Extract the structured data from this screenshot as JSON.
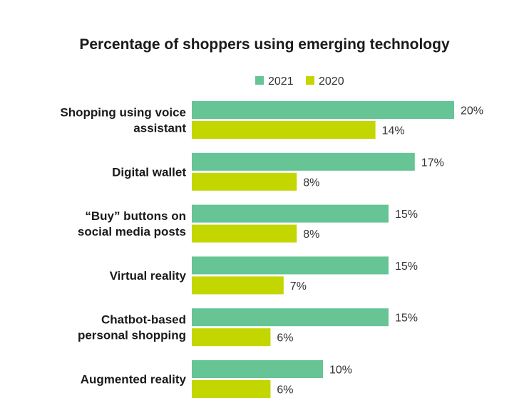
{
  "chart_data": {
    "type": "bar",
    "orientation": "horizontal",
    "title": "Percentage of shoppers using emerging technology",
    "xlabel": "",
    "ylabel": "",
    "xlim": [
      0,
      20
    ],
    "grid": false,
    "legend_position": "top",
    "categories": [
      [
        "Shopping using voice",
        "assistant"
      ],
      [
        "Digital wallet"
      ],
      [
        "“Buy” buttons on",
        "social media posts"
      ],
      [
        "Virtual reality"
      ],
      [
        "Chatbot-based",
        "personal shopping"
      ],
      [
        "Augmented reality"
      ]
    ],
    "series": [
      {
        "name": "2021",
        "color": "#66c495",
        "values": [
          20,
          17,
          15,
          15,
          15,
          10
        ],
        "labels": [
          "20%",
          "17%",
          "15%",
          "15%",
          "15%",
          "10%"
        ]
      },
      {
        "name": "2020",
        "color": "#c3d600",
        "values": [
          14,
          8,
          8,
          7,
          6,
          6
        ],
        "labels": [
          "14%",
          "8%",
          "8%",
          "7%",
          "6%",
          "6%"
        ]
      }
    ]
  }
}
